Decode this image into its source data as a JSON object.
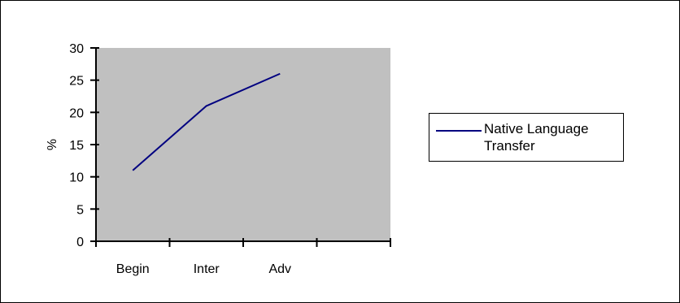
{
  "chart_data": {
    "type": "line",
    "categories": [
      "Begin",
      "Inter",
      "Adv"
    ],
    "series": [
      {
        "name": "Native Language Transfer",
        "values": [
          11,
          21,
          26
        ],
        "color": "#000080"
      }
    ],
    "ylabel": "%",
    "xlabel": "",
    "ylim": [
      0,
      30
    ],
    "yticks": [
      0,
      5,
      10,
      15,
      20,
      25,
      30
    ],
    "grid": false,
    "plot_background": "#c0c0c0",
    "legend_position": "right"
  }
}
